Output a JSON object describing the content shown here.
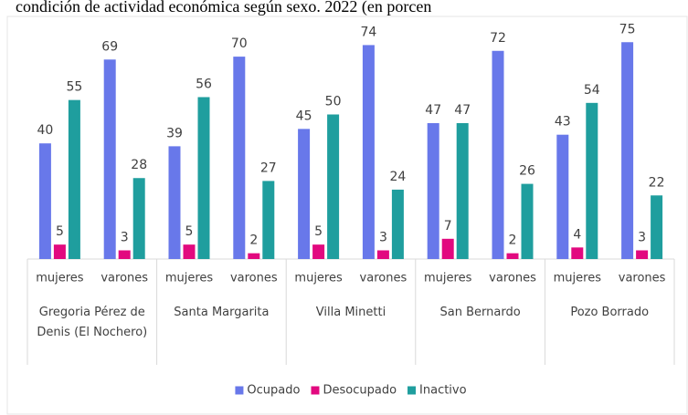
{
  "chart_data": {
    "type": "bar",
    "title": "condición de actividad económica según sexo. 2022 (en porcen",
    "categories": [
      "mujeres",
      "varones",
      "mujeres",
      "varones",
      "mujeres",
      "varones",
      "mujeres",
      "varones",
      "mujeres",
      "varones"
    ],
    "groups": [
      "Gregoria Pérez de Denis (El Nochero)",
      "Santa Margarita",
      "Villa Minetti",
      "San Bernardo",
      "Pozo Borrado"
    ],
    "series": [
      {
        "name": "Ocupado",
        "color": "#6878ea",
        "values": [
          40,
          69,
          39,
          70,
          45,
          74,
          47,
          72,
          43,
          75
        ]
      },
      {
        "name": "Desocupado",
        "color": "#e2097f",
        "values": [
          5,
          3,
          5,
          2,
          5,
          3,
          7,
          2,
          4,
          3
        ]
      },
      {
        "name": "Inactivo",
        "color": "#1f9e9e",
        "values": [
          55,
          28,
          56,
          27,
          50,
          24,
          47,
          26,
          54,
          22
        ]
      }
    ],
    "legend": "bottom"
  }
}
